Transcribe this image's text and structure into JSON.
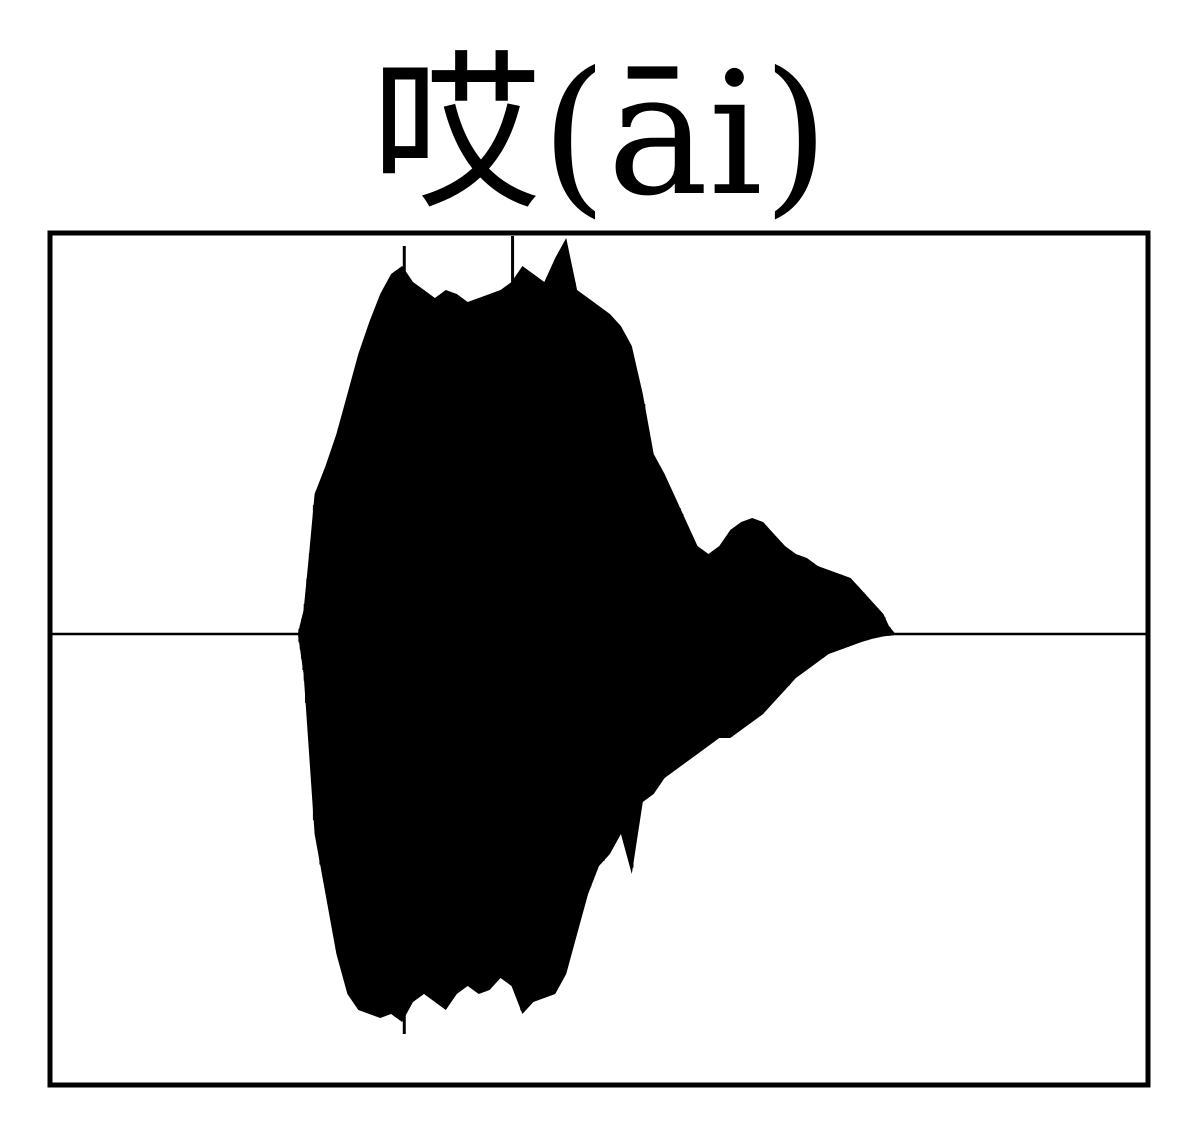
{
  "title": "哎(āi)",
  "colors": {
    "waveform": "#000000",
    "frame": "#000000",
    "background": "#ffffff"
  },
  "chart_data": {
    "type": "line",
    "title": "哎(āi)",
    "xlabel": "",
    "ylabel": "",
    "grid": false,
    "legend": "none",
    "x_range": [
      0,
      1
    ],
    "ylim": [
      -1,
      1
    ],
    "series": [
      {
        "name": "",
        "envelope_upper": [
          [
            0.0,
            0.003
          ],
          [
            0.225,
            0.003
          ],
          [
            0.23,
            0.06
          ],
          [
            0.235,
            0.2
          ],
          [
            0.24,
            0.35
          ],
          [
            0.25,
            0.42
          ],
          [
            0.26,
            0.5
          ],
          [
            0.27,
            0.6
          ],
          [
            0.28,
            0.7
          ],
          [
            0.29,
            0.78
          ],
          [
            0.3,
            0.85
          ],
          [
            0.31,
            0.9
          ],
          [
            0.32,
            0.92
          ],
          [
            0.33,
            0.88
          ],
          [
            0.34,
            0.86
          ],
          [
            0.35,
            0.84
          ],
          [
            0.36,
            0.86
          ],
          [
            0.37,
            0.85
          ],
          [
            0.38,
            0.83
          ],
          [
            0.39,
            0.84
          ],
          [
            0.4,
            0.85
          ],
          [
            0.41,
            0.86
          ],
          [
            0.42,
            0.88
          ],
          [
            0.43,
            0.92
          ],
          [
            0.44,
            0.9
          ],
          [
            0.45,
            0.88
          ],
          [
            0.46,
            0.94
          ],
          [
            0.47,
            0.99
          ],
          [
            0.48,
            0.86
          ],
          [
            0.49,
            0.84
          ],
          [
            0.5,
            0.82
          ],
          [
            0.51,
            0.8
          ],
          [
            0.52,
            0.77
          ],
          [
            0.53,
            0.72
          ],
          [
            0.54,
            0.6
          ],
          [
            0.55,
            0.45
          ],
          [
            0.56,
            0.4
          ],
          [
            0.57,
            0.34
          ],
          [
            0.58,
            0.28
          ],
          [
            0.59,
            0.22
          ],
          [
            0.6,
            0.2
          ],
          [
            0.61,
            0.22
          ],
          [
            0.62,
            0.26
          ],
          [
            0.63,
            0.28
          ],
          [
            0.64,
            0.29
          ],
          [
            0.65,
            0.28
          ],
          [
            0.66,
            0.25
          ],
          [
            0.67,
            0.22
          ],
          [
            0.68,
            0.2
          ],
          [
            0.69,
            0.19
          ],
          [
            0.7,
            0.17
          ],
          [
            0.71,
            0.16
          ],
          [
            0.72,
            0.15
          ],
          [
            0.73,
            0.14
          ],
          [
            0.74,
            0.11
          ],
          [
            0.75,
            0.08
          ],
          [
            0.76,
            0.05
          ],
          [
            0.765,
            0.02
          ],
          [
            0.77,
            0.003
          ],
          [
            1.0,
            0.003
          ]
        ],
        "envelope_lower": [
          [
            0.0,
            -0.003
          ],
          [
            0.225,
            -0.003
          ],
          [
            0.23,
            -0.1
          ],
          [
            0.235,
            -0.3
          ],
          [
            0.24,
            -0.5
          ],
          [
            0.25,
            -0.65
          ],
          [
            0.26,
            -0.8
          ],
          [
            0.27,
            -0.9
          ],
          [
            0.28,
            -0.94
          ],
          [
            0.29,
            -0.95
          ],
          [
            0.3,
            -0.96
          ],
          [
            0.31,
            -0.95
          ],
          [
            0.32,
            -0.97
          ],
          [
            0.33,
            -0.92
          ],
          [
            0.34,
            -0.9
          ],
          [
            0.35,
            -0.92
          ],
          [
            0.36,
            -0.94
          ],
          [
            0.37,
            -0.9
          ],
          [
            0.38,
            -0.88
          ],
          [
            0.39,
            -0.9
          ],
          [
            0.4,
            -0.89
          ],
          [
            0.41,
            -0.86
          ],
          [
            0.42,
            -0.88
          ],
          [
            0.43,
            -0.95
          ],
          [
            0.44,
            -0.92
          ],
          [
            0.45,
            -0.91
          ],
          [
            0.46,
            -0.9
          ],
          [
            0.47,
            -0.85
          ],
          [
            0.48,
            -0.75
          ],
          [
            0.49,
            -0.65
          ],
          [
            0.5,
            -0.58
          ],
          [
            0.51,
            -0.55
          ],
          [
            0.52,
            -0.5
          ],
          [
            0.53,
            -0.6
          ],
          [
            0.54,
            -0.42
          ],
          [
            0.55,
            -0.4
          ],
          [
            0.56,
            -0.36
          ],
          [
            0.57,
            -0.34
          ],
          [
            0.58,
            -0.32
          ],
          [
            0.59,
            -0.3
          ],
          [
            0.6,
            -0.28
          ],
          [
            0.61,
            -0.26
          ],
          [
            0.62,
            -0.26
          ],
          [
            0.63,
            -0.24
          ],
          [
            0.64,
            -0.22
          ],
          [
            0.65,
            -0.2
          ],
          [
            0.66,
            -0.17
          ],
          [
            0.67,
            -0.14
          ],
          [
            0.68,
            -0.11
          ],
          [
            0.69,
            -0.09
          ],
          [
            0.7,
            -0.07
          ],
          [
            0.71,
            -0.05
          ],
          [
            0.72,
            -0.04
          ],
          [
            0.73,
            -0.03
          ],
          [
            0.74,
            -0.02
          ],
          [
            0.75,
            -0.012
          ],
          [
            0.76,
            -0.006
          ],
          [
            0.77,
            -0.003
          ],
          [
            1.0,
            -0.003
          ]
        ],
        "spikes": [
          {
            "x": 0.322,
            "y_min": -1.0,
            "y_max": 0.97
          },
          {
            "x": 0.421,
            "y_min": -0.6,
            "y_max": 1.0
          }
        ]
      }
    ]
  }
}
